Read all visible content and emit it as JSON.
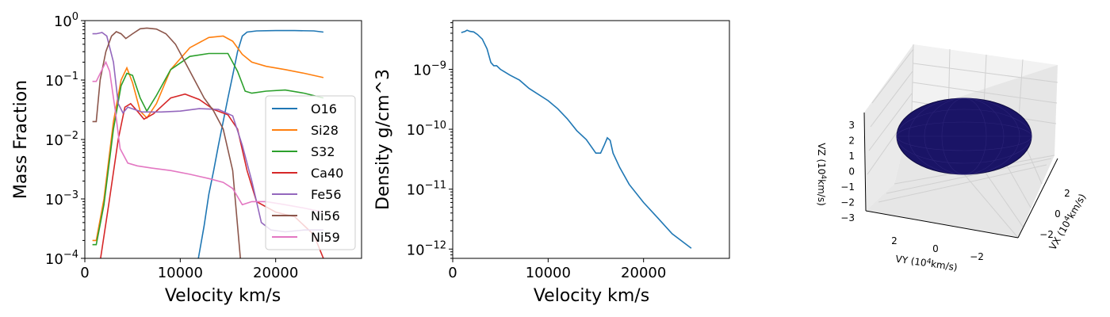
{
  "chart_data": [
    {
      "type": "line",
      "title": "",
      "xlabel": "Velocity km/s",
      "ylabel": "Mass Fraction",
      "xlim": [
        0,
        29000
      ],
      "ylim": [
        0.0001,
        1
      ],
      "yscale": "log",
      "xticks": [
        {
          "value": 0,
          "label": "0"
        },
        {
          "value": 10000,
          "label": "10000"
        },
        {
          "value": 20000,
          "label": "20000"
        }
      ],
      "yticks": [
        {
          "exp": -4,
          "label": "10^{-4}",
          "base": "10",
          "sup": "−4"
        },
        {
          "exp": -3,
          "label": "10^{-3}",
          "base": "10",
          "sup": "−3"
        },
        {
          "exp": -2,
          "label": "10^{-2}",
          "base": "10",
          "sup": "−2"
        },
        {
          "exp": -1,
          "label": "10^{-1}",
          "base": "10",
          "sup": "−1"
        },
        {
          "exp": 0,
          "label": "10^{0}",
          "base": "10",
          "sup": "0"
        }
      ],
      "legend": "lower-right",
      "series": [
        {
          "name": "O16",
          "color": "#1f77b4",
          "points": [
            [
              11900,
              0.0001
            ],
            [
              12500,
              0.00035
            ],
            [
              13000,
              0.0012
            ],
            [
              13500,
              0.003
            ],
            [
              14000,
              0.008
            ],
            [
              14500,
              0.02
            ],
            [
              15000,
              0.05
            ],
            [
              15500,
              0.12
            ],
            [
              16000,
              0.3
            ],
            [
              16500,
              0.55
            ],
            [
              17000,
              0.64
            ],
            [
              18000,
              0.67
            ],
            [
              20000,
              0.68
            ],
            [
              22000,
              0.68
            ],
            [
              24000,
              0.67
            ],
            [
              25000,
              0.64
            ]
          ]
        },
        {
          "name": "Si28",
          "color": "#ff7f0e",
          "points": [
            [
              800,
              0.0002
            ],
            [
              1200,
              0.0002
            ],
            [
              2000,
              0.001
            ],
            [
              3000,
              0.02
            ],
            [
              3800,
              0.1
            ],
            [
              4400,
              0.16
            ],
            [
              5000,
              0.09
            ],
            [
              5800,
              0.03
            ],
            [
              6500,
              0.023
            ],
            [
              7500,
              0.04
            ],
            [
              9000,
              0.15
            ],
            [
              11000,
              0.35
            ],
            [
              13000,
              0.52
            ],
            [
              14500,
              0.55
            ],
            [
              15500,
              0.45
            ],
            [
              16500,
              0.27
            ],
            [
              17500,
              0.2
            ],
            [
              19000,
              0.17
            ],
            [
              21000,
              0.15
            ],
            [
              23000,
              0.13
            ],
            [
              25000,
              0.11
            ]
          ]
        },
        {
          "name": "S32",
          "color": "#2ca02c",
          "points": [
            [
              800,
              0.00017
            ],
            [
              1200,
              0.00017
            ],
            [
              2000,
              0.0008
            ],
            [
              3000,
              0.015
            ],
            [
              3800,
              0.08
            ],
            [
              4400,
              0.13
            ],
            [
              5000,
              0.12
            ],
            [
              5800,
              0.05
            ],
            [
              6500,
              0.03
            ],
            [
              7500,
              0.055
            ],
            [
              9000,
              0.15
            ],
            [
              11000,
              0.25
            ],
            [
              13000,
              0.28
            ],
            [
              15000,
              0.28
            ],
            [
              16000,
              0.14
            ],
            [
              16800,
              0.065
            ],
            [
              17500,
              0.06
            ],
            [
              19000,
              0.065
            ],
            [
              21000,
              0.068
            ],
            [
              23000,
              0.06
            ],
            [
              25000,
              0.05
            ]
          ]
        },
        {
          "name": "Ca40",
          "color": "#d62728",
          "points": [
            [
              1500,
              7e-05
            ],
            [
              2500,
              0.0008
            ],
            [
              3500,
              0.01
            ],
            [
              4200,
              0.035
            ],
            [
              4800,
              0.04
            ],
            [
              5500,
              0.03
            ],
            [
              6200,
              0.022
            ],
            [
              7200,
              0.027
            ],
            [
              9000,
              0.05
            ],
            [
              10500,
              0.058
            ],
            [
              12000,
              0.047
            ],
            [
              13500,
              0.032
            ],
            [
              15000,
              0.026
            ],
            [
              16000,
              0.015
            ],
            [
              17000,
              0.003
            ],
            [
              18000,
              0.0009
            ],
            [
              20000,
              0.0006
            ],
            [
              22000,
              0.0005
            ],
            [
              24000,
              0.00025
            ],
            [
              25000,
              0.0001
            ]
          ]
        },
        {
          "name": "Fe56",
          "color": "#9467bd",
          "points": [
            [
              800,
              0.6
            ],
            [
              1200,
              0.6
            ],
            [
              1800,
              0.63
            ],
            [
              2300,
              0.55
            ],
            [
              3000,
              0.2
            ],
            [
              3500,
              0.04
            ],
            [
              4000,
              0.028
            ],
            [
              4500,
              0.035
            ],
            [
              5200,
              0.032
            ],
            [
              6000,
              0.029
            ],
            [
              8000,
              0.029
            ],
            [
              10000,
              0.03
            ],
            [
              12000,
              0.033
            ],
            [
              14000,
              0.032
            ],
            [
              15500,
              0.025
            ],
            [
              16500,
              0.008
            ],
            [
              17500,
              0.002
            ],
            [
              18500,
              0.0004
            ],
            [
              19500,
              0.0003
            ],
            [
              21000,
              0.00028
            ],
            [
              23000,
              0.0003
            ],
            [
              25000,
              0.0003
            ]
          ]
        },
        {
          "name": "Ni56",
          "color": "#8c564b",
          "points": [
            [
              800,
              0.02
            ],
            [
              1200,
              0.02
            ],
            [
              1600,
              0.1
            ],
            [
              2200,
              0.3
            ],
            [
              2800,
              0.55
            ],
            [
              3300,
              0.65
            ],
            [
              3800,
              0.6
            ],
            [
              4300,
              0.5
            ],
            [
              5000,
              0.6
            ],
            [
              5800,
              0.73
            ],
            [
              6500,
              0.75
            ],
            [
              7500,
              0.72
            ],
            [
              8500,
              0.6
            ],
            [
              9500,
              0.4
            ],
            [
              10500,
              0.2
            ],
            [
              11500,
              0.1
            ],
            [
              12500,
              0.05
            ],
            [
              13500,
              0.03
            ],
            [
              14500,
              0.015
            ],
            [
              15500,
              0.003
            ],
            [
              16300,
              0.0001
            ]
          ]
        },
        {
          "name": "Ni59",
          "color": "#e377c2",
          "points": [
            [
              800,
              0.095
            ],
            [
              1200,
              0.095
            ],
            [
              1800,
              0.15
            ],
            [
              2200,
              0.2
            ],
            [
              2600,
              0.14
            ],
            [
              3200,
              0.03
            ],
            [
              3700,
              0.007
            ],
            [
              4500,
              0.004
            ],
            [
              5500,
              0.0036
            ],
            [
              7000,
              0.0033
            ],
            [
              9000,
              0.003
            ],
            [
              11000,
              0.0026
            ],
            [
              13000,
              0.0022
            ],
            [
              14500,
              0.0019
            ],
            [
              15500,
              0.0015
            ],
            [
              16500,
              0.0008
            ],
            [
              17500,
              0.0009
            ],
            [
              19000,
              0.0009
            ],
            [
              21000,
              0.0008
            ],
            [
              23000,
              0.0007
            ],
            [
              25000,
              0.0006
            ]
          ]
        }
      ]
    },
    {
      "type": "line",
      "title": "",
      "xlabel": "Velocity km/s",
      "ylabel": "Density g/cm^3",
      "xlim": [
        0,
        29000
      ],
      "ylim": [
        7e-13,
        6.5e-09
      ],
      "yscale": "log",
      "xticks": [
        {
          "value": 0,
          "label": "0"
        },
        {
          "value": 10000,
          "label": "10000"
        },
        {
          "value": 20000,
          "label": "20000"
        }
      ],
      "yticks": [
        {
          "exp": -9,
          "label": "10^{-9}",
          "base": "10",
          "sup": "−9"
        },
        {
          "exp": -10,
          "label": "10^{-10}",
          "base": "10",
          "sup": "−10"
        },
        {
          "exp": -11,
          "label": "10^{-11}",
          "base": "10",
          "sup": "−11"
        },
        {
          "exp": -12,
          "label": "10^{-12}",
          "base": "10",
          "sup": "−12"
        }
      ],
      "series": [
        {
          "name": "",
          "color": "#1f77b4",
          "points": [
            [
              900,
              4.1e-09
            ],
            [
              1300,
              4.3e-09
            ],
            [
              1500,
              4.5e-09
            ],
            [
              1800,
              4.3e-09
            ],
            [
              2200,
              4.2e-09
            ],
            [
              2600,
              3.8e-09
            ],
            [
              3100,
              3.2e-09
            ],
            [
              3600,
              2.2e-09
            ],
            [
              4000,
              1.3e-09
            ],
            [
              4300,
              1.15e-09
            ],
            [
              4600,
              1.15e-09
            ],
            [
              5000,
              1e-09
            ],
            [
              6000,
              8e-10
            ],
            [
              7000,
              6.6e-10
            ],
            [
              8000,
              4.8e-10
            ],
            [
              10000,
              3e-10
            ],
            [
              11000,
              2.2e-10
            ],
            [
              12000,
              1.5e-10
            ],
            [
              13000,
              9.5e-11
            ],
            [
              14000,
              6.7e-11
            ],
            [
              15000,
              4e-11
            ],
            [
              15500,
              4e-11
            ],
            [
              15900,
              5.5e-11
            ],
            [
              16200,
              7.2e-11
            ],
            [
              16500,
              6.5e-11
            ],
            [
              16800,
              4e-11
            ],
            [
              17500,
              2.3e-11
            ],
            [
              18500,
              1.2e-11
            ],
            [
              20000,
              6e-12
            ],
            [
              21500,
              3.3e-12
            ],
            [
              23000,
              1.8e-12
            ],
            [
              25000,
              1.03e-12
            ]
          ]
        }
      ]
    },
    {
      "type": "scatter",
      "title": "",
      "xlabel": "VX (10^4km/s)",
      "ylabel": "VY (10^4km/s)",
      "zlabel": "VZ (10^4km/s)",
      "xticks": [
        "2",
        "0",
        "−2"
      ],
      "yticks": [
        "2",
        "0",
        "−2"
      ],
      "zticks": [
        "3",
        "2",
        "1",
        "0",
        "−1",
        "−2",
        "−3"
      ],
      "surface_color": "#1a1466"
    }
  ]
}
